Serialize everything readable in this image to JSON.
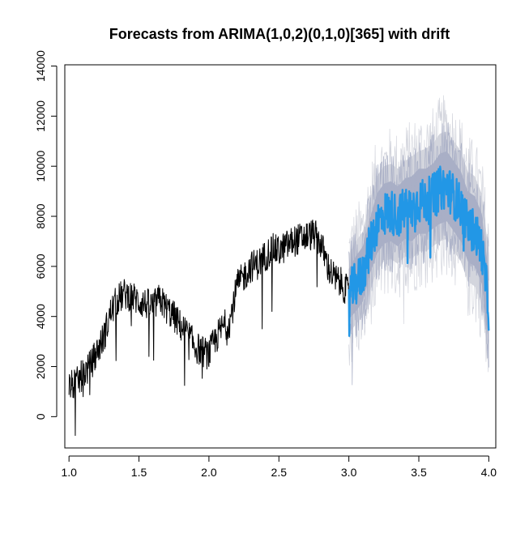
{
  "chart_data": {
    "type": "line",
    "title": "Forecasts from ARIMA(1,0,2)(0,1,0)[365] with drift",
    "xlabel": "",
    "ylabel": "",
    "xlim": [
      0.97,
      4.05
    ],
    "ylim": [
      -1250,
      14050
    ],
    "x_ticks": [
      1.0,
      1.5,
      2.0,
      2.5,
      3.0,
      3.5,
      4.0
    ],
    "x_tick_labels": [
      "1.0",
      "1.5",
      "2.0",
      "2.5",
      "3.0",
      "3.5",
      "4.0"
    ],
    "y_ticks": [
      0,
      2000,
      4000,
      6000,
      8000,
      10000,
      12000,
      14000
    ],
    "y_tick_labels": [
      "0",
      "2000",
      "4000",
      "6000",
      "8000",
      "10000",
      "12000",
      "14000"
    ],
    "grid": false,
    "legend": "none",
    "colors": {
      "observed": "#000000",
      "forecast": "#2297E6",
      "interval_80": "#A9AFC6",
      "interval_95": "#D3D5DD",
      "axis": "#000000"
    },
    "series": [
      {
        "role": "observed",
        "x": [
          1.0,
          1.05,
          1.1,
          1.15,
          1.2,
          1.25,
          1.3,
          1.35,
          1.4,
          1.45,
          1.5,
          1.55,
          1.6,
          1.65,
          1.7,
          1.75,
          1.8,
          1.85,
          1.9,
          1.95,
          2.0,
          2.05,
          2.1,
          2.15,
          2.2,
          2.25,
          2.3,
          2.35,
          2.4,
          2.45,
          2.5,
          2.55,
          2.6,
          2.65,
          2.7,
          2.75,
          2.8,
          2.85,
          2.9,
          2.95,
          3.0
        ],
        "values": [
          1200,
          1300,
          1700,
          2000,
          2600,
          3200,
          4200,
          4700,
          4900,
          4800,
          4600,
          4500,
          4400,
          4700,
          4300,
          4000,
          3600,
          3300,
          2800,
          2600,
          2500,
          3100,
          3600,
          3800,
          5200,
          5600,
          6000,
          6100,
          6400,
          6700,
          6600,
          6800,
          7000,
          7100,
          7200,
          7300,
          6900,
          6000,
          5500,
          5300,
          4900
        ]
      },
      {
        "role": "forecast",
        "x": [
          3.0,
          3.05,
          3.1,
          3.15,
          3.2,
          3.25,
          3.3,
          3.35,
          3.4,
          3.45,
          3.5,
          3.55,
          3.6,
          3.65,
          3.7,
          3.75,
          3.8,
          3.85,
          3.9,
          3.95,
          4.0
        ],
        "values": [
          4900,
          5300,
          5700,
          6800,
          7700,
          8100,
          8200,
          8000,
          8300,
          8300,
          8600,
          8600,
          8800,
          9100,
          9200,
          8800,
          8400,
          7600,
          7400,
          6700,
          4300
        ]
      }
    ],
    "intervals": [
      {
        "level": "80%",
        "x": [
          3.0,
          3.05,
          3.1,
          3.15,
          3.2,
          3.25,
          3.3,
          3.35,
          3.4,
          3.45,
          3.5,
          3.55,
          3.6,
          3.65,
          3.7,
          3.75,
          3.8,
          3.85,
          3.9,
          3.95,
          4.0
        ],
        "lower": [
          3900,
          4200,
          4600,
          5700,
          6500,
          6900,
          7000,
          6800,
          7100,
          7000,
          7300,
          7300,
          7500,
          7700,
          7800,
          7400,
          7000,
          6200,
          6000,
          5300,
          2900
        ],
        "upper": [
          5900,
          6400,
          6800,
          7900,
          8900,
          9300,
          9400,
          9200,
          9500,
          9600,
          9900,
          9900,
          10100,
          10500,
          10600,
          10200,
          9800,
          9000,
          8800,
          8100,
          5700
        ]
      },
      {
        "level": "95%",
        "x": [
          3.0,
          3.05,
          3.1,
          3.15,
          3.2,
          3.25,
          3.3,
          3.35,
          3.4,
          3.45,
          3.5,
          3.55,
          3.6,
          3.65,
          3.7,
          3.75,
          3.8,
          3.85,
          3.9,
          3.95,
          4.0
        ],
        "lower": [
          3300,
          3700,
          4000,
          5000,
          5800,
          6200,
          6300,
          6100,
          6400,
          6300,
          6600,
          6600,
          6800,
          7000,
          7100,
          6600,
          6200,
          5400,
          5200,
          4500,
          2100
        ],
        "upper": [
          6500,
          7000,
          7400,
          8600,
          9600,
          10000,
          10100,
          9900,
          10200,
          10400,
          10600,
          10700,
          10900,
          11300,
          11400,
          11000,
          10600,
          9800,
          9600,
          8900,
          6500
        ]
      }
    ]
  }
}
